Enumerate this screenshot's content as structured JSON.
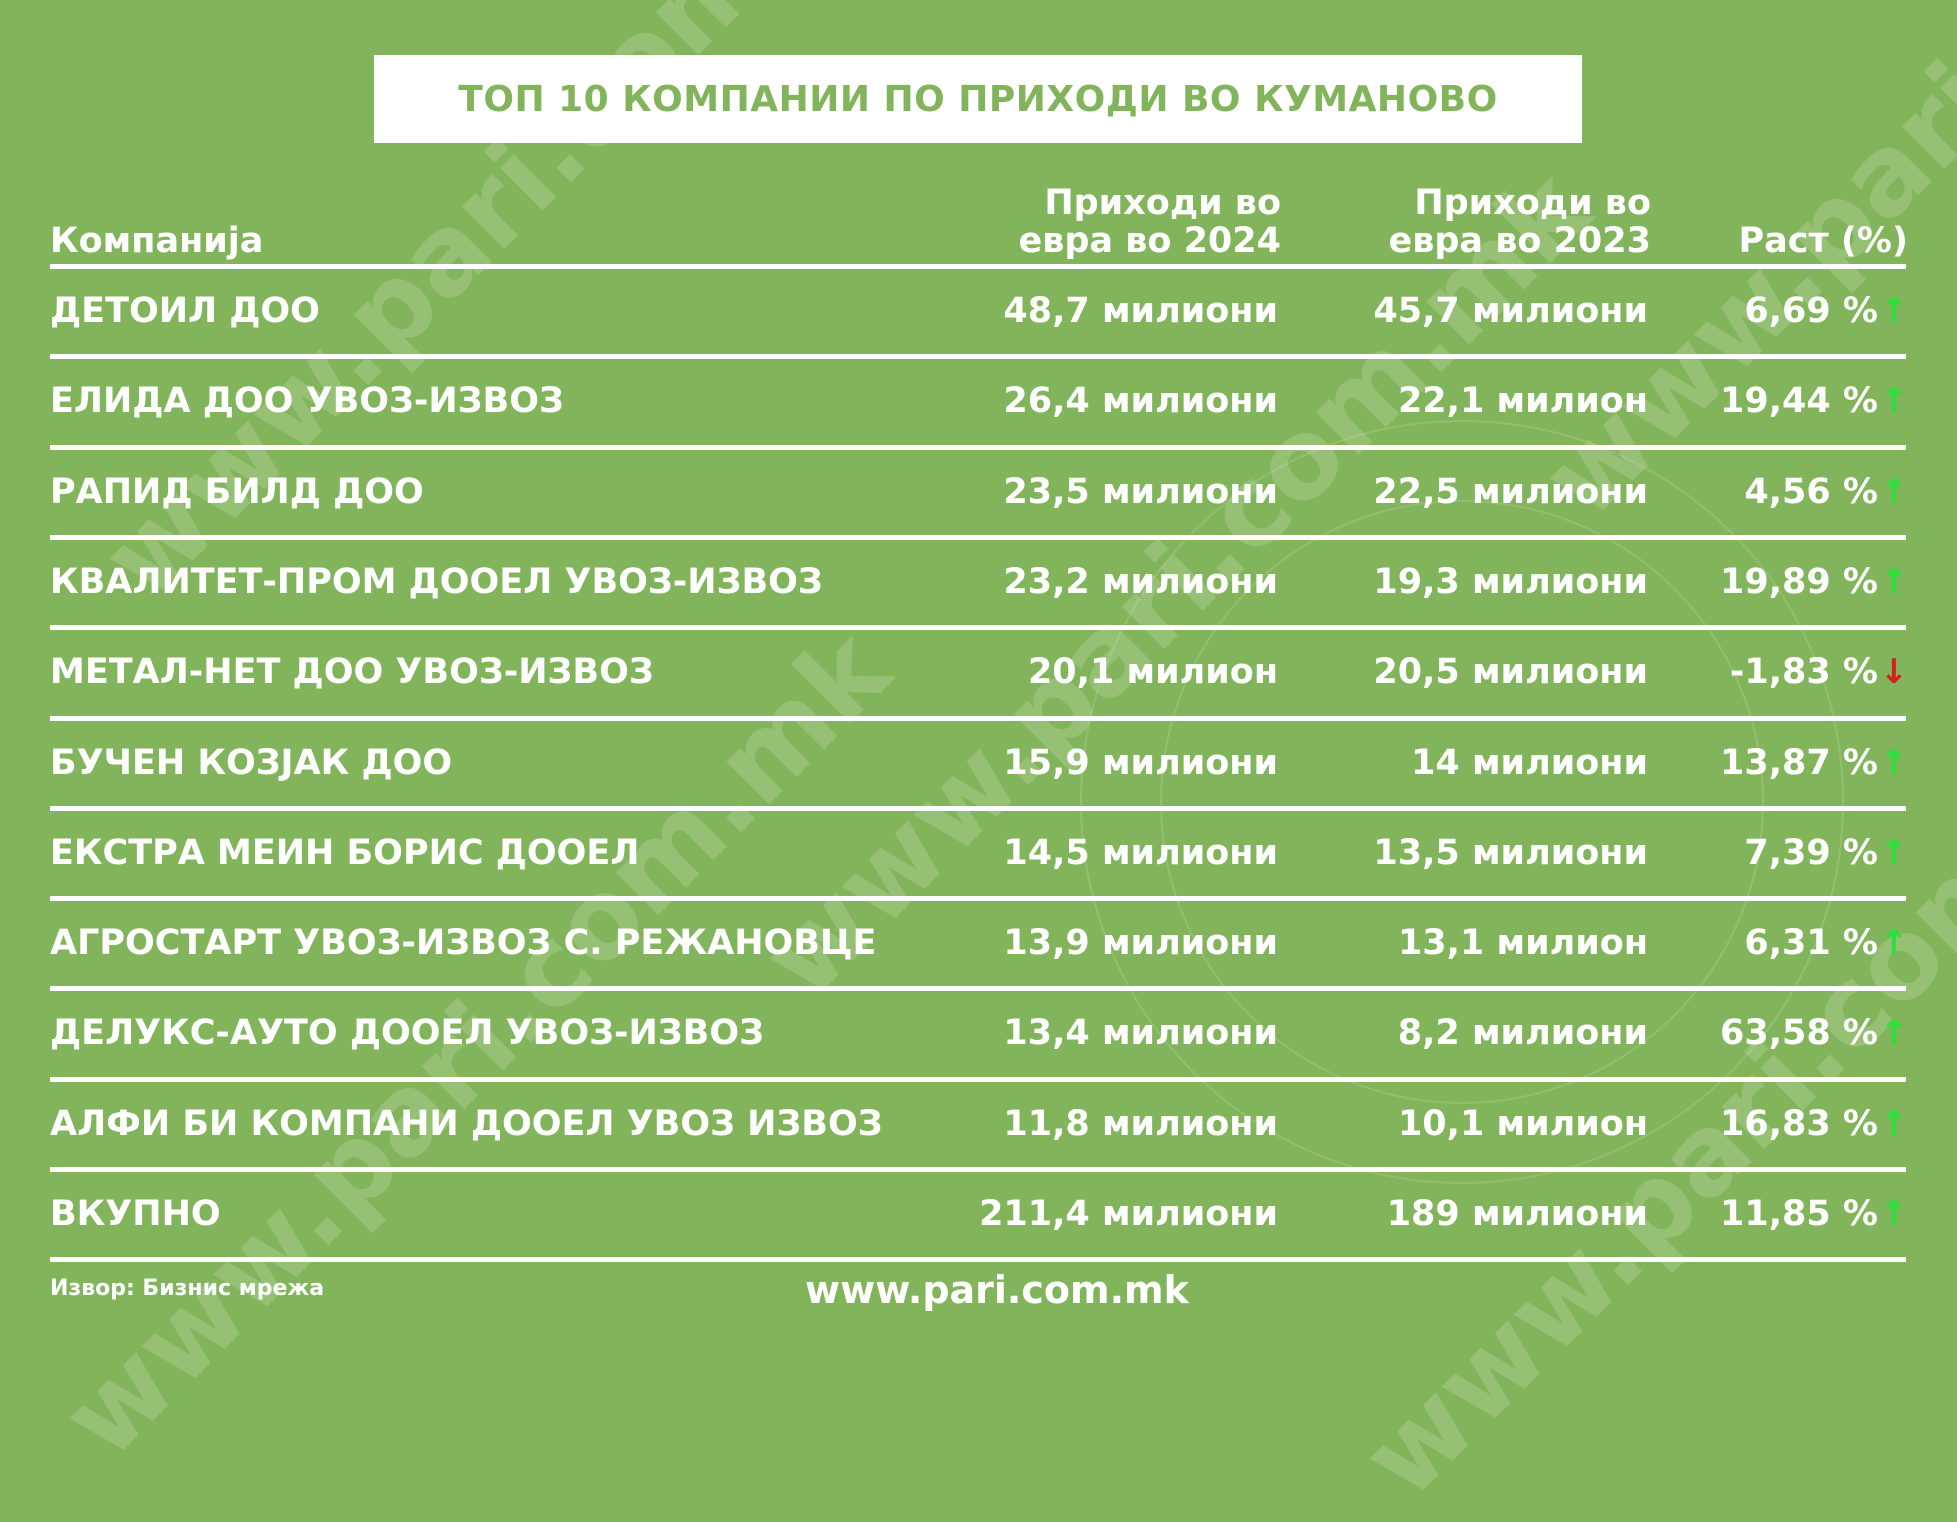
{
  "title": "ТОП 10 КОМПАНИИ ПО ПРИХОДИ ВО КУМАНОВО",
  "headers": {
    "company": "Компанија",
    "revenue_2024": "Приходи во евра во 2024",
    "revenue_2023": "Приходи во евра во 2023",
    "growth": "Раст (%)"
  },
  "rows": [
    {
      "name": "ДЕТОИЛ ДОО",
      "revenue_2024": "48,7 милиони",
      "revenue_2023": "45,7 милиони",
      "growth": "6,69 %",
      "trend": "up",
      "arrow": "↑"
    },
    {
      "name": "ЕЛИДА ДОО УВОЗ-ИЗВОЗ",
      "revenue_2024": "26,4 милиони",
      "revenue_2023": "22,1 милион",
      "growth": "19,44 %",
      "trend": "up",
      "arrow": "↑"
    },
    {
      "name": "РАПИД БИЛД ДОО",
      "revenue_2024": "23,5 милиони",
      "revenue_2023": "22,5 милиони",
      "growth": "4,56 %",
      "trend": "up",
      "arrow": "↑"
    },
    {
      "name": "КВАЛИТЕТ-ПРОМ ДООЕЛ УВОЗ-ИЗВОЗ",
      "revenue_2024": "23,2 милиони",
      "revenue_2023": "19,3 милиони",
      "growth": "19,89 %",
      "trend": "up",
      "arrow": "↑"
    },
    {
      "name": "МЕТАЛ-НЕТ ДОО УВОЗ-ИЗВОЗ",
      "revenue_2024": "20,1 милион",
      "revenue_2023": "20,5 милиони",
      "growth": "-1,83 %",
      "trend": "down",
      "arrow": "↓"
    },
    {
      "name": "БУЧЕН КОЗЈАК ДОО",
      "revenue_2024": "15,9 милиони",
      "revenue_2023": "14 милиони",
      "growth": "13,87 %",
      "trend": "up",
      "arrow": "↑"
    },
    {
      "name": "ЕКСТРА МЕИН БОРИС ДООЕЛ",
      "revenue_2024": "14,5 милиони",
      "revenue_2023": "13,5 милиони",
      "growth": "7,39 %",
      "trend": "up",
      "arrow": "↑"
    },
    {
      "name": "АГРОСТАРТ УВОЗ-ИЗВОЗ С. РЕЖАНОВЦЕ",
      "revenue_2024": "13,9 милиони",
      "revenue_2023": "13,1 милион",
      "growth": "6,31 %",
      "trend": "up",
      "arrow": "↑"
    },
    {
      "name": "ДЕЛУКС-АУТО ДООЕЛ УВОЗ-ИЗВОЗ",
      "revenue_2024": "13,4 милиони",
      "revenue_2023": "8,2 милиони",
      "growth": "63,58 %",
      "trend": "up",
      "arrow": "↑"
    },
    {
      "name": "АЛФИ БИ КОМПАНИ ДООЕЛ УВОЗ ИЗВОЗ",
      "revenue_2024": "11,8 милиони",
      "revenue_2023": "10,1 милион",
      "growth": "16,83 %",
      "trend": "up",
      "arrow": "↑"
    },
    {
      "name": "ВКУПНО",
      "revenue_2024": "211,4 милиони",
      "revenue_2023": "189 милиони",
      "growth": "11,85 %",
      "trend": "up",
      "arrow": "↑"
    }
  ],
  "source": "Извор: Бизнис мрежа",
  "website": "www.pari.com.mk",
  "watermark": "www.pari.com.mk",
  "colors": {
    "background": "#82b55b",
    "title_text": "#82b55b",
    "up_arrow": "#2be03a",
    "down_arrow": "#d62020"
  }
}
